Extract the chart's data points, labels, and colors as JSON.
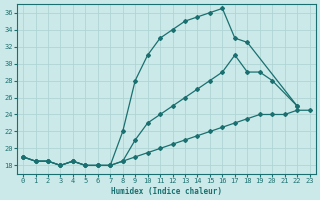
{
  "xlabel": "Humidex (Indice chaleur)",
  "xlim": [
    -0.5,
    23.5
  ],
  "ylim": [
    17,
    37
  ],
  "yticks": [
    18,
    20,
    22,
    24,
    26,
    28,
    30,
    32,
    34,
    36
  ],
  "xticks": [
    0,
    1,
    2,
    3,
    4,
    5,
    6,
    7,
    8,
    9,
    10,
    11,
    12,
    13,
    14,
    15,
    16,
    17,
    18,
    19,
    20,
    21,
    22,
    23
  ],
  "bg_color": "#cce9e9",
  "line_color": "#1a7070",
  "grid_color": "#b0d4d4",
  "line1_x": [
    0,
    1,
    2,
    3,
    4,
    5,
    6,
    7,
    8,
    9,
    10,
    11,
    12,
    13,
    14,
    15,
    16,
    17,
    18,
    22
  ],
  "line1_y": [
    19,
    18.5,
    18.5,
    18,
    18.5,
    18,
    18,
    18,
    22,
    28,
    31,
    33,
    34,
    35,
    35.5,
    36,
    36.5,
    33,
    32.5,
    25
  ],
  "line2_x": [
    0,
    1,
    2,
    3,
    4,
    5,
    6,
    7,
    8,
    9,
    10,
    11,
    12,
    13,
    14,
    15,
    16,
    17,
    18,
    19,
    20,
    22
  ],
  "line2_y": [
    19,
    18.5,
    18.5,
    18,
    18.5,
    18,
    18,
    18,
    18.5,
    21,
    23,
    24,
    25,
    26,
    27,
    28,
    29,
    31,
    29,
    29,
    28,
    25
  ],
  "line3_x": [
    0,
    1,
    2,
    3,
    4,
    5,
    6,
    7,
    8,
    9,
    10,
    11,
    12,
    13,
    14,
    15,
    16,
    17,
    18,
    19,
    20,
    21,
    22,
    23
  ],
  "line3_y": [
    19,
    18.5,
    18.5,
    18,
    18.5,
    18,
    18,
    18,
    18.5,
    19,
    19.5,
    20,
    20.5,
    21,
    21.5,
    22,
    22.5,
    23,
    23.5,
    24,
    24,
    24,
    24.5,
    24.5
  ]
}
